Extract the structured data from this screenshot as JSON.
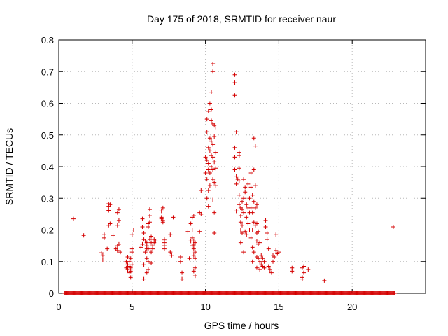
{
  "chart_data": {
    "type": "scatter",
    "title": "Day 175 of 2018, SRMTID for receiver naur",
    "xlabel": "GPS time / hours",
    "ylabel": "SRMTID / TECUs",
    "xlim": [
      0,
      25
    ],
    "ylim": [
      0,
      0.8
    ],
    "xticks": [
      0,
      5,
      10,
      15,
      20
    ],
    "yticks": [
      0,
      0.1,
      0.2,
      0.3,
      0.4,
      0.5,
      0.6,
      0.7,
      0.8
    ],
    "grid": true,
    "marker": "+",
    "color": "#d40000",
    "baseline": {
      "y": 0,
      "x_start": 0.4,
      "x_end": 22.9,
      "step": 0.05
    },
    "series": [
      {
        "name": "SRMTID",
        "points": [
          [
            1.0,
            0.235
          ],
          [
            1.7,
            0.183
          ],
          [
            2.9,
            0.128
          ],
          [
            3.0,
            0.12
          ],
          [
            3.0,
            0.105
          ],
          [
            3.1,
            0.185
          ],
          [
            3.1,
            0.175
          ],
          [
            3.4,
            0.283
          ],
          [
            3.4,
            0.275
          ],
          [
            3.5,
            0.28
          ],
          [
            3.4,
            0.262
          ],
          [
            3.5,
            0.22
          ],
          [
            3.4,
            0.215
          ],
          [
            3.3,
            0.14
          ],
          [
            3.7,
            0.183
          ],
          [
            4.0,
            0.255
          ],
          [
            4.1,
            0.265
          ],
          [
            4.1,
            0.23
          ],
          [
            4.0,
            0.215
          ],
          [
            4.0,
            0.15
          ],
          [
            4.1,
            0.155
          ],
          [
            4.0,
            0.135
          ],
          [
            4.2,
            0.13
          ],
          [
            3.9,
            0.14
          ],
          [
            4.6,
            0.1
          ],
          [
            4.6,
            0.08
          ],
          [
            4.7,
            0.075
          ],
          [
            4.7,
            0.09
          ],
          [
            4.8,
            0.065
          ],
          [
            4.8,
            0.085
          ],
          [
            4.8,
            0.105
          ],
          [
            4.9,
            0.07
          ],
          [
            4.9,
            0.11
          ],
          [
            4.9,
            0.08
          ],
          [
            4.9,
            0.05
          ],
          [
            5.0,
            0.09
          ],
          [
            5.0,
            0.13
          ],
          [
            5.0,
            0.14
          ],
          [
            5.1,
            0.2
          ],
          [
            5.0,
            0.185
          ],
          [
            4.7,
            0.115
          ],
          [
            4.8,
            0.1
          ],
          [
            5.6,
            0.145
          ],
          [
            5.7,
            0.155
          ],
          [
            5.7,
            0.235
          ],
          [
            5.7,
            0.21
          ],
          [
            5.8,
            0.19
          ],
          [
            5.8,
            0.17
          ],
          [
            5.8,
            0.09
          ],
          [
            5.8,
            0.045
          ],
          [
            5.9,
            0.13
          ],
          [
            5.9,
            0.165
          ],
          [
            6.0,
            0.14
          ],
          [
            6.0,
            0.16
          ],
          [
            6.0,
            0.15
          ],
          [
            6.0,
            0.11
          ],
          [
            6.0,
            0.065
          ],
          [
            6.1,
            0.075
          ],
          [
            6.1,
            0.14
          ],
          [
            6.1,
            0.21
          ],
          [
            6.1,
            0.22
          ],
          [
            6.2,
            0.245
          ],
          [
            6.2,
            0.265
          ],
          [
            6.2,
            0.225
          ],
          [
            6.3,
            0.18
          ],
          [
            6.2,
            0.17
          ],
          [
            6.3,
            0.16
          ],
          [
            6.3,
            0.13
          ],
          [
            6.3,
            0.095
          ],
          [
            6.1,
            0.1
          ],
          [
            6.4,
            0.15
          ],
          [
            6.4,
            0.14
          ],
          [
            6.5,
            0.17
          ],
          [
            6.5,
            0.16
          ],
          [
            6.6,
            0.165
          ],
          [
            7.0,
            0.26
          ],
          [
            7.0,
            0.24
          ],
          [
            7.0,
            0.235
          ],
          [
            7.1,
            0.23
          ],
          [
            7.1,
            0.225
          ],
          [
            7.1,
            0.27
          ],
          [
            7.2,
            0.165
          ],
          [
            7.2,
            0.16
          ],
          [
            7.2,
            0.15
          ],
          [
            7.2,
            0.14
          ],
          [
            7.2,
            0.17
          ],
          [
            7.6,
            0.185
          ],
          [
            7.6,
            0.13
          ],
          [
            7.7,
            0.12
          ],
          [
            7.8,
            0.24
          ],
          [
            8.3,
            0.115
          ],
          [
            8.3,
            0.1
          ],
          [
            8.4,
            0.065
          ],
          [
            8.4,
            0.045
          ],
          [
            8.9,
            0.11
          ],
          [
            8.8,
            0.195
          ],
          [
            9.0,
            0.22
          ],
          [
            9.1,
            0.24
          ],
          [
            9.1,
            0.2
          ],
          [
            9.1,
            0.175
          ],
          [
            9.2,
            0.245
          ],
          [
            9.2,
            0.165
          ],
          [
            9.2,
            0.155
          ],
          [
            9.2,
            0.15
          ],
          [
            9.2,
            0.14
          ],
          [
            9.3,
            0.16
          ],
          [
            9.3,
            0.13
          ],
          [
            9.3,
            0.11
          ],
          [
            9.3,
            0.08
          ],
          [
            9.2,
            0.07
          ],
          [
            9.3,
            0.055
          ],
          [
            9.2,
            0.12
          ],
          [
            9.0,
            0.165
          ],
          [
            9.1,
            0.15
          ],
          [
            9.6,
            0.255
          ],
          [
            9.7,
            0.25
          ],
          [
            9.6,
            0.195
          ],
          [
            9.7,
            0.325
          ],
          [
            10.0,
            0.43
          ],
          [
            10.0,
            0.38
          ],
          [
            10.1,
            0.55
          ],
          [
            10.1,
            0.51
          ],
          [
            10.1,
            0.42
          ],
          [
            10.1,
            0.36
          ],
          [
            10.1,
            0.3
          ],
          [
            10.2,
            0.575
          ],
          [
            10.2,
            0.46
          ],
          [
            10.2,
            0.41
          ],
          [
            10.2,
            0.39
          ],
          [
            10.2,
            0.325
          ],
          [
            10.2,
            0.275
          ],
          [
            10.3,
            0.6
          ],
          [
            10.3,
            0.49
          ],
          [
            10.3,
            0.45
          ],
          [
            10.3,
            0.38
          ],
          [
            10.3,
            0.34
          ],
          [
            10.4,
            0.635
          ],
          [
            10.4,
            0.58
          ],
          [
            10.4,
            0.545
          ],
          [
            10.4,
            0.48
          ],
          [
            10.4,
            0.435
          ],
          [
            10.4,
            0.4
          ],
          [
            10.5,
            0.725
          ],
          [
            10.5,
            0.7
          ],
          [
            10.5,
            0.535
          ],
          [
            10.5,
            0.47
          ],
          [
            10.5,
            0.43
          ],
          [
            10.5,
            0.39
          ],
          [
            10.5,
            0.36
          ],
          [
            10.5,
            0.295
          ],
          [
            10.6,
            0.53
          ],
          [
            10.6,
            0.495
          ],
          [
            10.6,
            0.415
          ],
          [
            10.6,
            0.35
          ],
          [
            10.6,
            0.255
          ],
          [
            10.6,
            0.19
          ],
          [
            10.7,
            0.525
          ],
          [
            10.7,
            0.445
          ],
          [
            10.7,
            0.395
          ],
          [
            10.7,
            0.34
          ],
          [
            12.0,
            0.69
          ],
          [
            12.0,
            0.665
          ],
          [
            12.0,
            0.625
          ],
          [
            12.0,
            0.46
          ],
          [
            12.0,
            0.43
          ],
          [
            12.0,
            0.39
          ],
          [
            12.1,
            0.51
          ],
          [
            12.1,
            0.37
          ],
          [
            12.1,
            0.345
          ],
          [
            12.1,
            0.26
          ],
          [
            12.2,
            0.36
          ],
          [
            12.3,
            0.445
          ],
          [
            12.3,
            0.435
          ],
          [
            12.3,
            0.395
          ],
          [
            12.3,
            0.355
          ],
          [
            12.3,
            0.31
          ],
          [
            12.3,
            0.28
          ],
          [
            12.4,
            0.27
          ],
          [
            12.4,
            0.245
          ],
          [
            12.4,
            0.225
          ],
          [
            12.4,
            0.2
          ],
          [
            12.4,
            0.16
          ],
          [
            12.5,
            0.29
          ],
          [
            12.5,
            0.265
          ],
          [
            12.5,
            0.215
          ],
          [
            12.5,
            0.19
          ],
          [
            12.6,
            0.36
          ],
          [
            12.6,
            0.3
          ],
          [
            12.6,
            0.255
          ],
          [
            12.6,
            0.13
          ],
          [
            12.7,
            0.335
          ],
          [
            12.7,
            0.32
          ],
          [
            12.7,
            0.195
          ],
          [
            12.8,
            0.28
          ],
          [
            12.8,
            0.24
          ],
          [
            12.8,
            0.185
          ],
          [
            12.9,
            0.345
          ],
          [
            12.9,
            0.27
          ],
          [
            12.9,
            0.22
          ],
          [
            13.0,
            0.3
          ],
          [
            13.0,
            0.255
          ],
          [
            13.0,
            0.2
          ],
          [
            13.1,
            0.38
          ],
          [
            13.1,
            0.335
          ],
          [
            13.1,
            0.27
          ],
          [
            13.1,
            0.175
          ],
          [
            13.2,
            0.31
          ],
          [
            13.2,
            0.255
          ],
          [
            13.2,
            0.2
          ],
          [
            13.2,
            0.145
          ],
          [
            13.2,
            0.1
          ],
          [
            13.3,
            0.49
          ],
          [
            13.3,
            0.39
          ],
          [
            13.3,
            0.29
          ],
          [
            13.3,
            0.225
          ],
          [
            13.3,
            0.13
          ],
          [
            13.4,
            0.465
          ],
          [
            13.4,
            0.34
          ],
          [
            13.4,
            0.27
          ],
          [
            13.4,
            0.215
          ],
          [
            13.5,
            0.28
          ],
          [
            13.5,
            0.22
          ],
          [
            13.5,
            0.19
          ],
          [
            13.5,
            0.165
          ],
          [
            13.5,
            0.115
          ],
          [
            13.5,
            0.08
          ],
          [
            13.6,
            0.195
          ],
          [
            13.6,
            0.155
          ],
          [
            13.6,
            0.11
          ],
          [
            13.7,
            0.16
          ],
          [
            13.7,
            0.1
          ],
          [
            13.7,
            0.075
          ],
          [
            13.8,
            0.12
          ],
          [
            13.8,
            0.09
          ],
          [
            13.9,
            0.11
          ],
          [
            13.9,
            0.085
          ],
          [
            14.0,
            0.1
          ],
          [
            14.0,
            0.08
          ],
          [
            14.1,
            0.23
          ],
          [
            14.1,
            0.21
          ],
          [
            14.2,
            0.19
          ],
          [
            14.2,
            0.17
          ],
          [
            14.3,
            0.14
          ],
          [
            14.3,
            0.085
          ],
          [
            14.4,
            0.075
          ],
          [
            14.5,
            0.065
          ],
          [
            14.6,
            0.12
          ],
          [
            14.6,
            0.1
          ],
          [
            14.7,
            0.115
          ],
          [
            14.8,
            0.135
          ],
          [
            14.8,
            0.185
          ],
          [
            14.9,
            0.125
          ],
          [
            15.0,
            0.13
          ],
          [
            15.9,
            0.08
          ],
          [
            15.9,
            0.07
          ],
          [
            16.6,
            0.08
          ],
          [
            16.7,
            0.085
          ],
          [
            16.7,
            0.065
          ],
          [
            16.6,
            0.05
          ],
          [
            16.6,
            0.045
          ],
          [
            17.0,
            0.075
          ],
          [
            18.1,
            0.04
          ],
          [
            22.8,
            0.21
          ]
        ]
      }
    ]
  }
}
